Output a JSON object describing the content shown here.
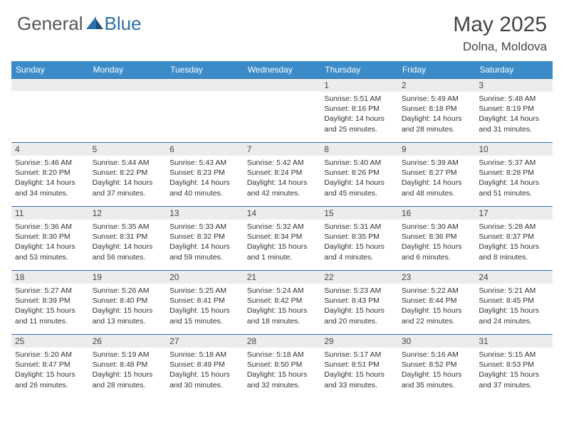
{
  "logo": {
    "general": "General",
    "blue": "Blue"
  },
  "title": "May 2025",
  "location": "Dolna, Moldova",
  "colors": {
    "header_bg": "#3b8bc9",
    "border": "#2f6fa8",
    "daynum_bg": "#ececec",
    "text": "#333333",
    "title": "#444444"
  },
  "weekdays": [
    "Sunday",
    "Monday",
    "Tuesday",
    "Wednesday",
    "Thursday",
    "Friday",
    "Saturday"
  ],
  "weeks": [
    [
      {
        "day": "",
        "sunrise": "",
        "sunset": "",
        "daylight": ""
      },
      {
        "day": "",
        "sunrise": "",
        "sunset": "",
        "daylight": ""
      },
      {
        "day": "",
        "sunrise": "",
        "sunset": "",
        "daylight": ""
      },
      {
        "day": "",
        "sunrise": "",
        "sunset": "",
        "daylight": ""
      },
      {
        "day": "1",
        "sunrise": "Sunrise: 5:51 AM",
        "sunset": "Sunset: 8:16 PM",
        "daylight": "Daylight: 14 hours and 25 minutes."
      },
      {
        "day": "2",
        "sunrise": "Sunrise: 5:49 AM",
        "sunset": "Sunset: 8:18 PM",
        "daylight": "Daylight: 14 hours and 28 minutes."
      },
      {
        "day": "3",
        "sunrise": "Sunrise: 5:48 AM",
        "sunset": "Sunset: 8:19 PM",
        "daylight": "Daylight: 14 hours and 31 minutes."
      }
    ],
    [
      {
        "day": "4",
        "sunrise": "Sunrise: 5:46 AM",
        "sunset": "Sunset: 8:20 PM",
        "daylight": "Daylight: 14 hours and 34 minutes."
      },
      {
        "day": "5",
        "sunrise": "Sunrise: 5:44 AM",
        "sunset": "Sunset: 8:22 PM",
        "daylight": "Daylight: 14 hours and 37 minutes."
      },
      {
        "day": "6",
        "sunrise": "Sunrise: 5:43 AM",
        "sunset": "Sunset: 8:23 PM",
        "daylight": "Daylight: 14 hours and 40 minutes."
      },
      {
        "day": "7",
        "sunrise": "Sunrise: 5:42 AM",
        "sunset": "Sunset: 8:24 PM",
        "daylight": "Daylight: 14 hours and 42 minutes."
      },
      {
        "day": "8",
        "sunrise": "Sunrise: 5:40 AM",
        "sunset": "Sunset: 8:26 PM",
        "daylight": "Daylight: 14 hours and 45 minutes."
      },
      {
        "day": "9",
        "sunrise": "Sunrise: 5:39 AM",
        "sunset": "Sunset: 8:27 PM",
        "daylight": "Daylight: 14 hours and 48 minutes."
      },
      {
        "day": "10",
        "sunrise": "Sunrise: 5:37 AM",
        "sunset": "Sunset: 8:28 PM",
        "daylight": "Daylight: 14 hours and 51 minutes."
      }
    ],
    [
      {
        "day": "11",
        "sunrise": "Sunrise: 5:36 AM",
        "sunset": "Sunset: 8:30 PM",
        "daylight": "Daylight: 14 hours and 53 minutes."
      },
      {
        "day": "12",
        "sunrise": "Sunrise: 5:35 AM",
        "sunset": "Sunset: 8:31 PM",
        "daylight": "Daylight: 14 hours and 56 minutes."
      },
      {
        "day": "13",
        "sunrise": "Sunrise: 5:33 AM",
        "sunset": "Sunset: 8:32 PM",
        "daylight": "Daylight: 14 hours and 59 minutes."
      },
      {
        "day": "14",
        "sunrise": "Sunrise: 5:32 AM",
        "sunset": "Sunset: 8:34 PM",
        "daylight": "Daylight: 15 hours and 1 minute."
      },
      {
        "day": "15",
        "sunrise": "Sunrise: 5:31 AM",
        "sunset": "Sunset: 8:35 PM",
        "daylight": "Daylight: 15 hours and 4 minutes."
      },
      {
        "day": "16",
        "sunrise": "Sunrise: 5:30 AM",
        "sunset": "Sunset: 8:36 PM",
        "daylight": "Daylight: 15 hours and 6 minutes."
      },
      {
        "day": "17",
        "sunrise": "Sunrise: 5:28 AM",
        "sunset": "Sunset: 8:37 PM",
        "daylight": "Daylight: 15 hours and 8 minutes."
      }
    ],
    [
      {
        "day": "18",
        "sunrise": "Sunrise: 5:27 AM",
        "sunset": "Sunset: 8:39 PM",
        "daylight": "Daylight: 15 hours and 11 minutes."
      },
      {
        "day": "19",
        "sunrise": "Sunrise: 5:26 AM",
        "sunset": "Sunset: 8:40 PM",
        "daylight": "Daylight: 15 hours and 13 minutes."
      },
      {
        "day": "20",
        "sunrise": "Sunrise: 5:25 AM",
        "sunset": "Sunset: 8:41 PM",
        "daylight": "Daylight: 15 hours and 15 minutes."
      },
      {
        "day": "21",
        "sunrise": "Sunrise: 5:24 AM",
        "sunset": "Sunset: 8:42 PM",
        "daylight": "Daylight: 15 hours and 18 minutes."
      },
      {
        "day": "22",
        "sunrise": "Sunrise: 5:23 AM",
        "sunset": "Sunset: 8:43 PM",
        "daylight": "Daylight: 15 hours and 20 minutes."
      },
      {
        "day": "23",
        "sunrise": "Sunrise: 5:22 AM",
        "sunset": "Sunset: 8:44 PM",
        "daylight": "Daylight: 15 hours and 22 minutes."
      },
      {
        "day": "24",
        "sunrise": "Sunrise: 5:21 AM",
        "sunset": "Sunset: 8:45 PM",
        "daylight": "Daylight: 15 hours and 24 minutes."
      }
    ],
    [
      {
        "day": "25",
        "sunrise": "Sunrise: 5:20 AM",
        "sunset": "Sunset: 8:47 PM",
        "daylight": "Daylight: 15 hours and 26 minutes."
      },
      {
        "day": "26",
        "sunrise": "Sunrise: 5:19 AM",
        "sunset": "Sunset: 8:48 PM",
        "daylight": "Daylight: 15 hours and 28 minutes."
      },
      {
        "day": "27",
        "sunrise": "Sunrise: 5:18 AM",
        "sunset": "Sunset: 8:49 PM",
        "daylight": "Daylight: 15 hours and 30 minutes."
      },
      {
        "day": "28",
        "sunrise": "Sunrise: 5:18 AM",
        "sunset": "Sunset: 8:50 PM",
        "daylight": "Daylight: 15 hours and 32 minutes."
      },
      {
        "day": "29",
        "sunrise": "Sunrise: 5:17 AM",
        "sunset": "Sunset: 8:51 PM",
        "daylight": "Daylight: 15 hours and 33 minutes."
      },
      {
        "day": "30",
        "sunrise": "Sunrise: 5:16 AM",
        "sunset": "Sunset: 8:52 PM",
        "daylight": "Daylight: 15 hours and 35 minutes."
      },
      {
        "day": "31",
        "sunrise": "Sunrise: 5:15 AM",
        "sunset": "Sunset: 8:53 PM",
        "daylight": "Daylight: 15 hours and 37 minutes."
      }
    ]
  ]
}
